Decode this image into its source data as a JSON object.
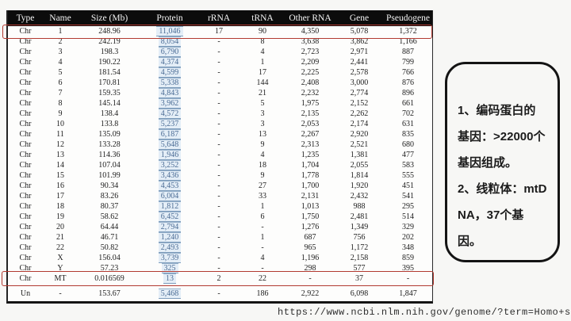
{
  "table": {
    "columns": [
      "Type",
      "Name",
      "Size (Mb)",
      "Protein",
      "rRNA",
      "tRNA",
      "Other RNA",
      "Gene",
      "Pseudogene"
    ],
    "column_keys": [
      "type",
      "name",
      "size-mb",
      "protein",
      "rrna",
      "trna",
      "other-rna",
      "gene",
      "pseudogene"
    ],
    "rows": [
      [
        "Chr",
        "1",
        "248.96",
        "11,046",
        "17",
        "90",
        "4,350",
        "5,078",
        "1,372"
      ],
      [
        "Chr",
        "2",
        "242.19",
        "8,054",
        "-",
        "8",
        "3,638",
        "3,862",
        "1,166"
      ],
      [
        "Chr",
        "3",
        "198.3",
        "6,790",
        "-",
        "4",
        "2,723",
        "2,971",
        "887"
      ],
      [
        "Chr",
        "4",
        "190.22",
        "4,374",
        "-",
        "1",
        "2,209",
        "2,441",
        "799"
      ],
      [
        "Chr",
        "5",
        "181.54",
        "4,599",
        "-",
        "17",
        "2,225",
        "2,578",
        "766"
      ],
      [
        "Chr",
        "6",
        "170.81",
        "5,338",
        "-",
        "144",
        "2,408",
        "3,000",
        "876"
      ],
      [
        "Chr",
        "7",
        "159.35",
        "4,843",
        "-",
        "21",
        "2,232",
        "2,774",
        "896"
      ],
      [
        "Chr",
        "8",
        "145.14",
        "3,962",
        "-",
        "5",
        "1,975",
        "2,152",
        "661"
      ],
      [
        "Chr",
        "9",
        "138.4",
        "4,572",
        "-",
        "3",
        "2,135",
        "2,262",
        "702"
      ],
      [
        "Chr",
        "10",
        "133.8",
        "5,237",
        "-",
        "3",
        "2,053",
        "2,174",
        "631"
      ],
      [
        "Chr",
        "11",
        "135.09",
        "6,187",
        "-",
        "13",
        "2,267",
        "2,920",
        "835"
      ],
      [
        "Chr",
        "12",
        "133.28",
        "5,648",
        "-",
        "9",
        "2,313",
        "2,521",
        "680"
      ],
      [
        "Chr",
        "13",
        "114.36",
        "1,946",
        "-",
        "4",
        "1,235",
        "1,381",
        "477"
      ],
      [
        "Chr",
        "14",
        "107.04",
        "3,252",
        "-",
        "18",
        "1,704",
        "2,055",
        "583"
      ],
      [
        "Chr",
        "15",
        "101.99",
        "3,436",
        "-",
        "9",
        "1,778",
        "1,814",
        "555"
      ],
      [
        "Chr",
        "16",
        "90.34",
        "4,453",
        "-",
        "27",
        "1,700",
        "1,920",
        "451"
      ],
      [
        "Chr",
        "17",
        "83.26",
        "6,004",
        "-",
        "33",
        "2,131",
        "2,432",
        "541"
      ],
      [
        "Chr",
        "18",
        "80.37",
        "1,812",
        "-",
        "1",
        "1,013",
        "988",
        "295"
      ],
      [
        "Chr",
        "19",
        "58.62",
        "6,452",
        "-",
        "6",
        "1,750",
        "2,481",
        "514"
      ],
      [
        "Chr",
        "20",
        "64.44",
        "2,794",
        "-",
        "-",
        "1,276",
        "1,349",
        "329"
      ],
      [
        "Chr",
        "21",
        "46.71",
        "1,240",
        "-",
        "1",
        "687",
        "756",
        "202"
      ],
      [
        "Chr",
        "22",
        "50.82",
        "2,493",
        "-",
        "-",
        "965",
        "1,172",
        "348"
      ],
      [
        "Chr",
        "X",
        "156.04",
        "3,739",
        "-",
        "4",
        "1,196",
        "2,158",
        "859"
      ],
      [
        "Chr",
        "Y",
        "57.23",
        "325",
        "-",
        "-",
        "298",
        "577",
        "395"
      ],
      [
        "Chr",
        "MT",
        "0.016569",
        "13",
        "2",
        "22",
        "-",
        "37",
        "-"
      ],
      [
        "Un",
        "-",
        "153.67",
        "5,468",
        "-",
        "186",
        "2,922",
        "6,098",
        "1,847"
      ]
    ]
  },
  "highlights": {
    "color": "#b23a31",
    "targets": [
      "row-chr-1",
      "row-chr-mt"
    ]
  },
  "annotation": {
    "notes": [
      "1、编码蛋白的基因：>22000个基因组成。",
      "2、线粒体：mtDNA，37个基因。"
    ]
  },
  "caption": {
    "url": "https://www.ncbi.nlm.nih.gov/genome/?term=Homo+sapie"
  }
}
